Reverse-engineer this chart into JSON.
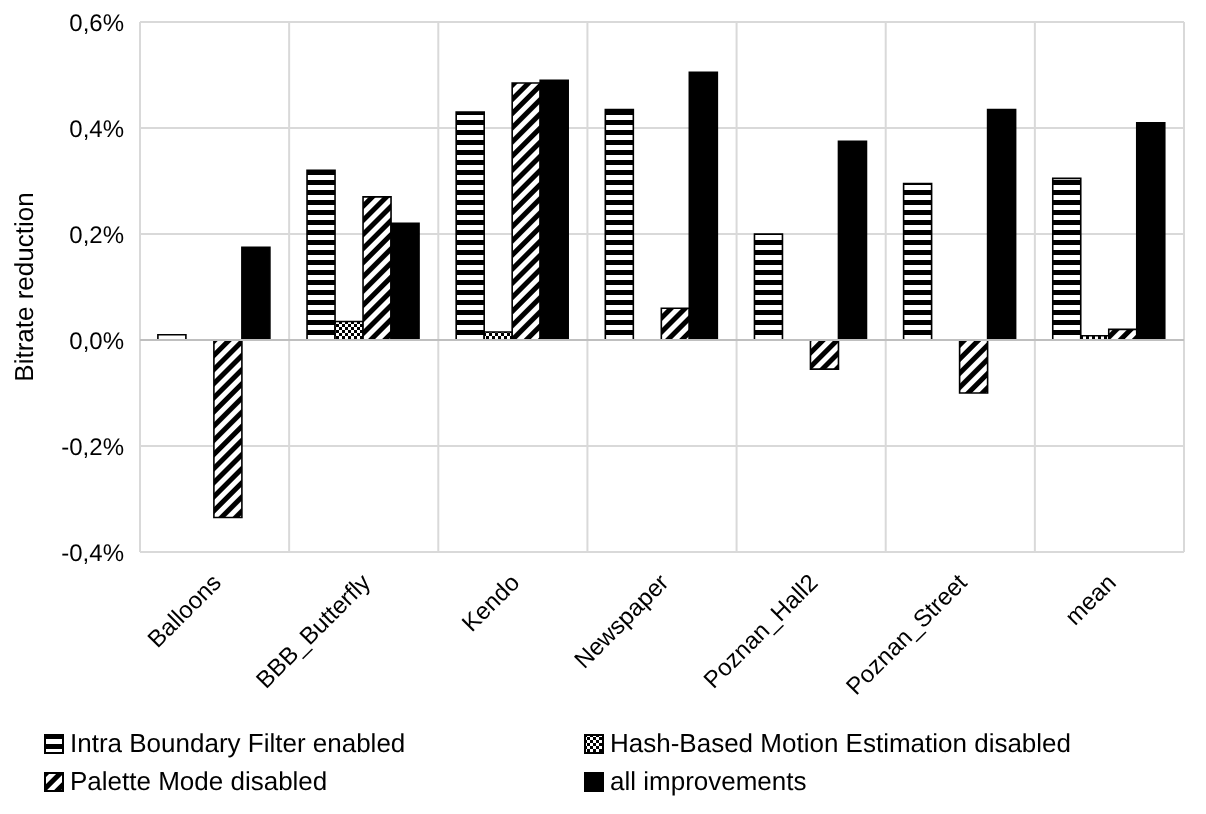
{
  "chart_data": {
    "type": "bar",
    "ylabel": "Bitrate reduction",
    "categories": [
      "Balloons",
      "BBB_Butterfly",
      "Kendo",
      "Newspaper",
      "Poznan_Hall2",
      "Poznan_Street",
      "mean"
    ],
    "series": [
      {
        "name": "Intra Boundary Filter enabled",
        "color": "#000000",
        "values": [
          0.01,
          0.32,
          0.43,
          0.435,
          0.2,
          0.295,
          0.305
        ]
      },
      {
        "name": "Hash-Based Motion Estimation disabled",
        "color": "#000000",
        "values": [
          0,
          0.035,
          0.015,
          0,
          0,
          0,
          0.008
        ]
      },
      {
        "name": "Palette Mode disabled",
        "color": "#000000",
        "values": [
          -0.335,
          0.27,
          0.485,
          0.06,
          -0.055,
          -0.1,
          0.02
        ]
      },
      {
        "name": "all improvements",
        "color": "#000000",
        "values": [
          0.175,
          0.22,
          0.49,
          0.505,
          0.375,
          0.435,
          0.41
        ]
      }
    ],
    "ylim": [
      -0.4,
      0.6
    ],
    "yticks": [
      {
        "value": -0.4,
        "label": "-0,4%"
      },
      {
        "value": -0.2,
        "label": "-0,2%"
      },
      {
        "value": 0,
        "label": "0,0%"
      },
      {
        "value": 0.2,
        "label": "0,2%"
      },
      {
        "value": 0.4,
        "label": "0,4%"
      },
      {
        "value": 0.6,
        "label": "0,6%"
      }
    ],
    "grid": true,
    "legend": "bottom"
  }
}
